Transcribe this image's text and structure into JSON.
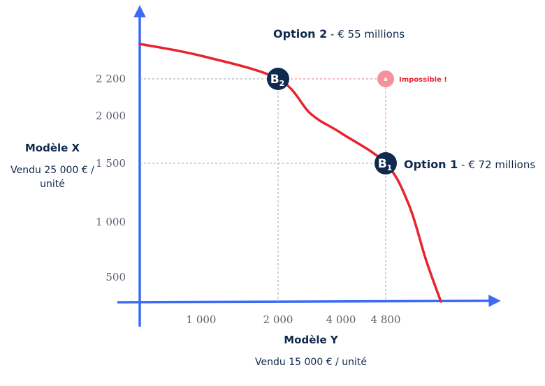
{
  "chart_data": {
    "type": "line",
    "title": "",
    "x_axis": {
      "label": "Modèle Y",
      "sublabel": "Vendu 15 000 € / unité",
      "ticks": [
        {
          "value": 1000,
          "label": "1 000"
        },
        {
          "value": 2000,
          "label": "2 000"
        },
        {
          "value": 4000,
          "label": "4 000"
        },
        {
          "value": 4800,
          "label": "4 800"
        }
      ]
    },
    "y_axis": {
      "label": "Modèle X",
      "sublabel": "Vendu 25 000 € / unité",
      "ticks": [
        {
          "value": 500,
          "label": "500"
        },
        {
          "value": 1000,
          "label": "1 000"
        },
        {
          "value": 1500,
          "label": "1 500"
        },
        {
          "value": 2000,
          "label": "2 000"
        },
        {
          "value": 2200,
          "label": "2 200"
        }
      ]
    },
    "series": [
      {
        "name": "",
        "color": "#e8232f",
        "points": [
          {
            "x": 0,
            "y": 2500
          },
          {
            "x": 1000,
            "y": 2420
          },
          {
            "x": 2000,
            "y": 2200
          },
          {
            "x": 3000,
            "y": 2010
          },
          {
            "x": 4000,
            "y": 1820
          },
          {
            "x": 4800,
            "y": 1500
          },
          {
            "x": 5200,
            "y": 1150
          },
          {
            "x": 5500,
            "y": 650
          },
          {
            "x": 5680,
            "y": 0
          }
        ]
      }
    ],
    "points": [
      {
        "id": "B2",
        "base": "B",
        "sub": "2",
        "x": 2000,
        "y": 2200,
        "color": "#0f2a4e"
      },
      {
        "id": "B1",
        "base": "B",
        "sub": "1",
        "x": 4800,
        "y": 1500,
        "color": "#0f2a4e"
      },
      {
        "id": "a",
        "label": "a",
        "x": 4800,
        "y": 2200,
        "color": "#f4919a",
        "note": "Impossible !"
      }
    ],
    "annotations": [
      {
        "id": "option2",
        "bold": "Option 2",
        "rest": "€ 55 millions"
      },
      {
        "id": "option1",
        "bold": "Option 1",
        "rest": "€ 72 millions"
      }
    ],
    "axis_color": "#3d6bf5",
    "grid": false
  }
}
